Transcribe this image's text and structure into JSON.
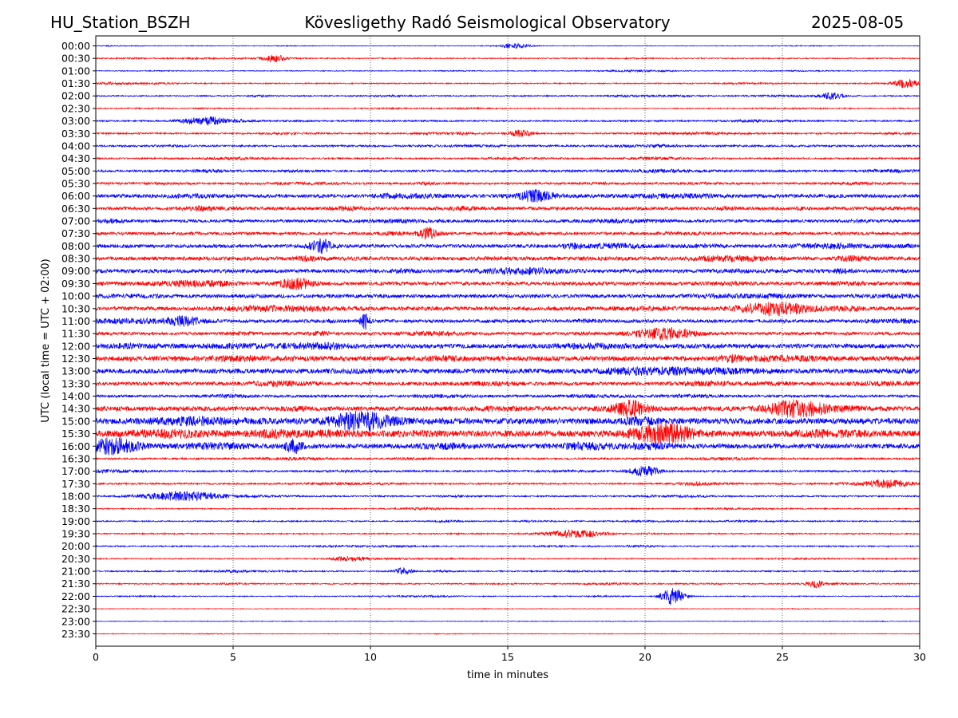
{
  "header": {
    "station": "HU_Station_BSZH",
    "title": "Kövesligethy Radó Seismological Observatory",
    "date": "2025-08-05"
  },
  "chart_data": {
    "type": "line",
    "title": "Kövesligethy Radó Seismological Observatory",
    "xlabel": "time in minutes",
    "ylabel": "UTC (local time = UTC + 02:00)",
    "xlim": [
      0,
      30
    ],
    "x_ticks": [
      "0",
      "5",
      "10",
      "15",
      "20",
      "25",
      "30"
    ],
    "grid": "vertical dotted lines at 5, 10, 15, 20, 25",
    "colors": [
      "#0000ff",
      "#ff0000"
    ],
    "trace_labels": [
      "00:00",
      "00:30",
      "01:00",
      "01:30",
      "02:00",
      "02:30",
      "03:00",
      "03:30",
      "04:00",
      "04:30",
      "05:00",
      "05:30",
      "06:00",
      "06:30",
      "07:00",
      "07:30",
      "08:00",
      "08:30",
      "09:00",
      "09:30",
      "10:00",
      "10:30",
      "11:00",
      "11:30",
      "12:00",
      "12:30",
      "13:00",
      "13:30",
      "14:00",
      "14:30",
      "15:00",
      "15:30",
      "16:00",
      "16:30",
      "17:00",
      "17:30",
      "18:00",
      "18:30",
      "19:00",
      "19:30",
      "20:00",
      "20:30",
      "21:00",
      "21:30",
      "22:00",
      "22:30",
      "23:00",
      "23:30"
    ],
    "noise_level": [
      0.4,
      0.7,
      0.5,
      0.7,
      0.8,
      0.6,
      1.0,
      1.0,
      1.2,
      1.0,
      1.4,
      1.3,
      2.2,
      2.0,
      1.8,
      1.8,
      2.2,
      2.4,
      2.3,
      2.2,
      2.2,
      2.4,
      2.1,
      1.9,
      2.7,
      3.0,
      2.9,
      2.2,
      1.6,
      2.8,
      3.6,
      3.9,
      3.0,
      1.1,
      1.2,
      1.1,
      0.9,
      0.7,
      0.8,
      0.8,
      0.8,
      0.7,
      0.8,
      0.8,
      0.6,
      0.4,
      0.4,
      0.4
    ],
    "events": [
      {
        "row": 0,
        "t": 15.3,
        "amp": 3,
        "dur": 0.5
      },
      {
        "row": 1,
        "t": 6.5,
        "amp": 4,
        "dur": 0.4
      },
      {
        "row": 3,
        "t": 29.5,
        "amp": 5,
        "dur": 0.4
      },
      {
        "row": 4,
        "t": 26.8,
        "amp": 4,
        "dur": 0.4
      },
      {
        "row": 6,
        "t": 4.0,
        "amp": 5,
        "dur": 0.8
      },
      {
        "row": 7,
        "t": 15.5,
        "amp": 4,
        "dur": 0.4
      },
      {
        "row": 12,
        "t": 16.0,
        "amp": 6,
        "dur": 0.6
      },
      {
        "row": 15,
        "t": 12.1,
        "amp": 6,
        "dur": 0.3
      },
      {
        "row": 16,
        "t": 8.2,
        "amp": 7,
        "dur": 0.4
      },
      {
        "row": 19,
        "t": 7.3,
        "amp": 6,
        "dur": 0.6
      },
      {
        "row": 21,
        "t": 24.8,
        "amp": 7,
        "dur": 1.2
      },
      {
        "row": 22,
        "t": 3.2,
        "amp": 5,
        "dur": 0.6
      },
      {
        "row": 22,
        "t": 9.8,
        "amp": 10,
        "dur": 0.15
      },
      {
        "row": 23,
        "t": 20.8,
        "amp": 6,
        "dur": 1.0
      },
      {
        "row": 29,
        "t": 19.5,
        "amp": 8,
        "dur": 0.6
      },
      {
        "row": 29,
        "t": 25.5,
        "amp": 9,
        "dur": 1.0
      },
      {
        "row": 30,
        "t": 9.6,
        "amp": 10,
        "dur": 1.0
      },
      {
        "row": 31,
        "t": 20.5,
        "amp": 9,
        "dur": 1.0
      },
      {
        "row": 32,
        "t": 0.5,
        "amp": 9,
        "dur": 1.0
      },
      {
        "row": 32,
        "t": 7.2,
        "amp": 8,
        "dur": 0.3
      },
      {
        "row": 34,
        "t": 20.0,
        "amp": 6,
        "dur": 0.5
      },
      {
        "row": 35,
        "t": 28.8,
        "amp": 5,
        "dur": 0.8
      },
      {
        "row": 36,
        "t": 3.2,
        "amp": 5,
        "dur": 1.5
      },
      {
        "row": 39,
        "t": 17.5,
        "amp": 4,
        "dur": 1.0
      },
      {
        "row": 41,
        "t": 9.2,
        "amp": 3,
        "dur": 0.6
      },
      {
        "row": 42,
        "t": 11.2,
        "amp": 4,
        "dur": 0.3
      },
      {
        "row": 43,
        "t": 26.2,
        "amp": 4,
        "dur": 0.3
      },
      {
        "row": 44,
        "t": 21.0,
        "amp": 11,
        "dur": 0.4
      }
    ]
  }
}
